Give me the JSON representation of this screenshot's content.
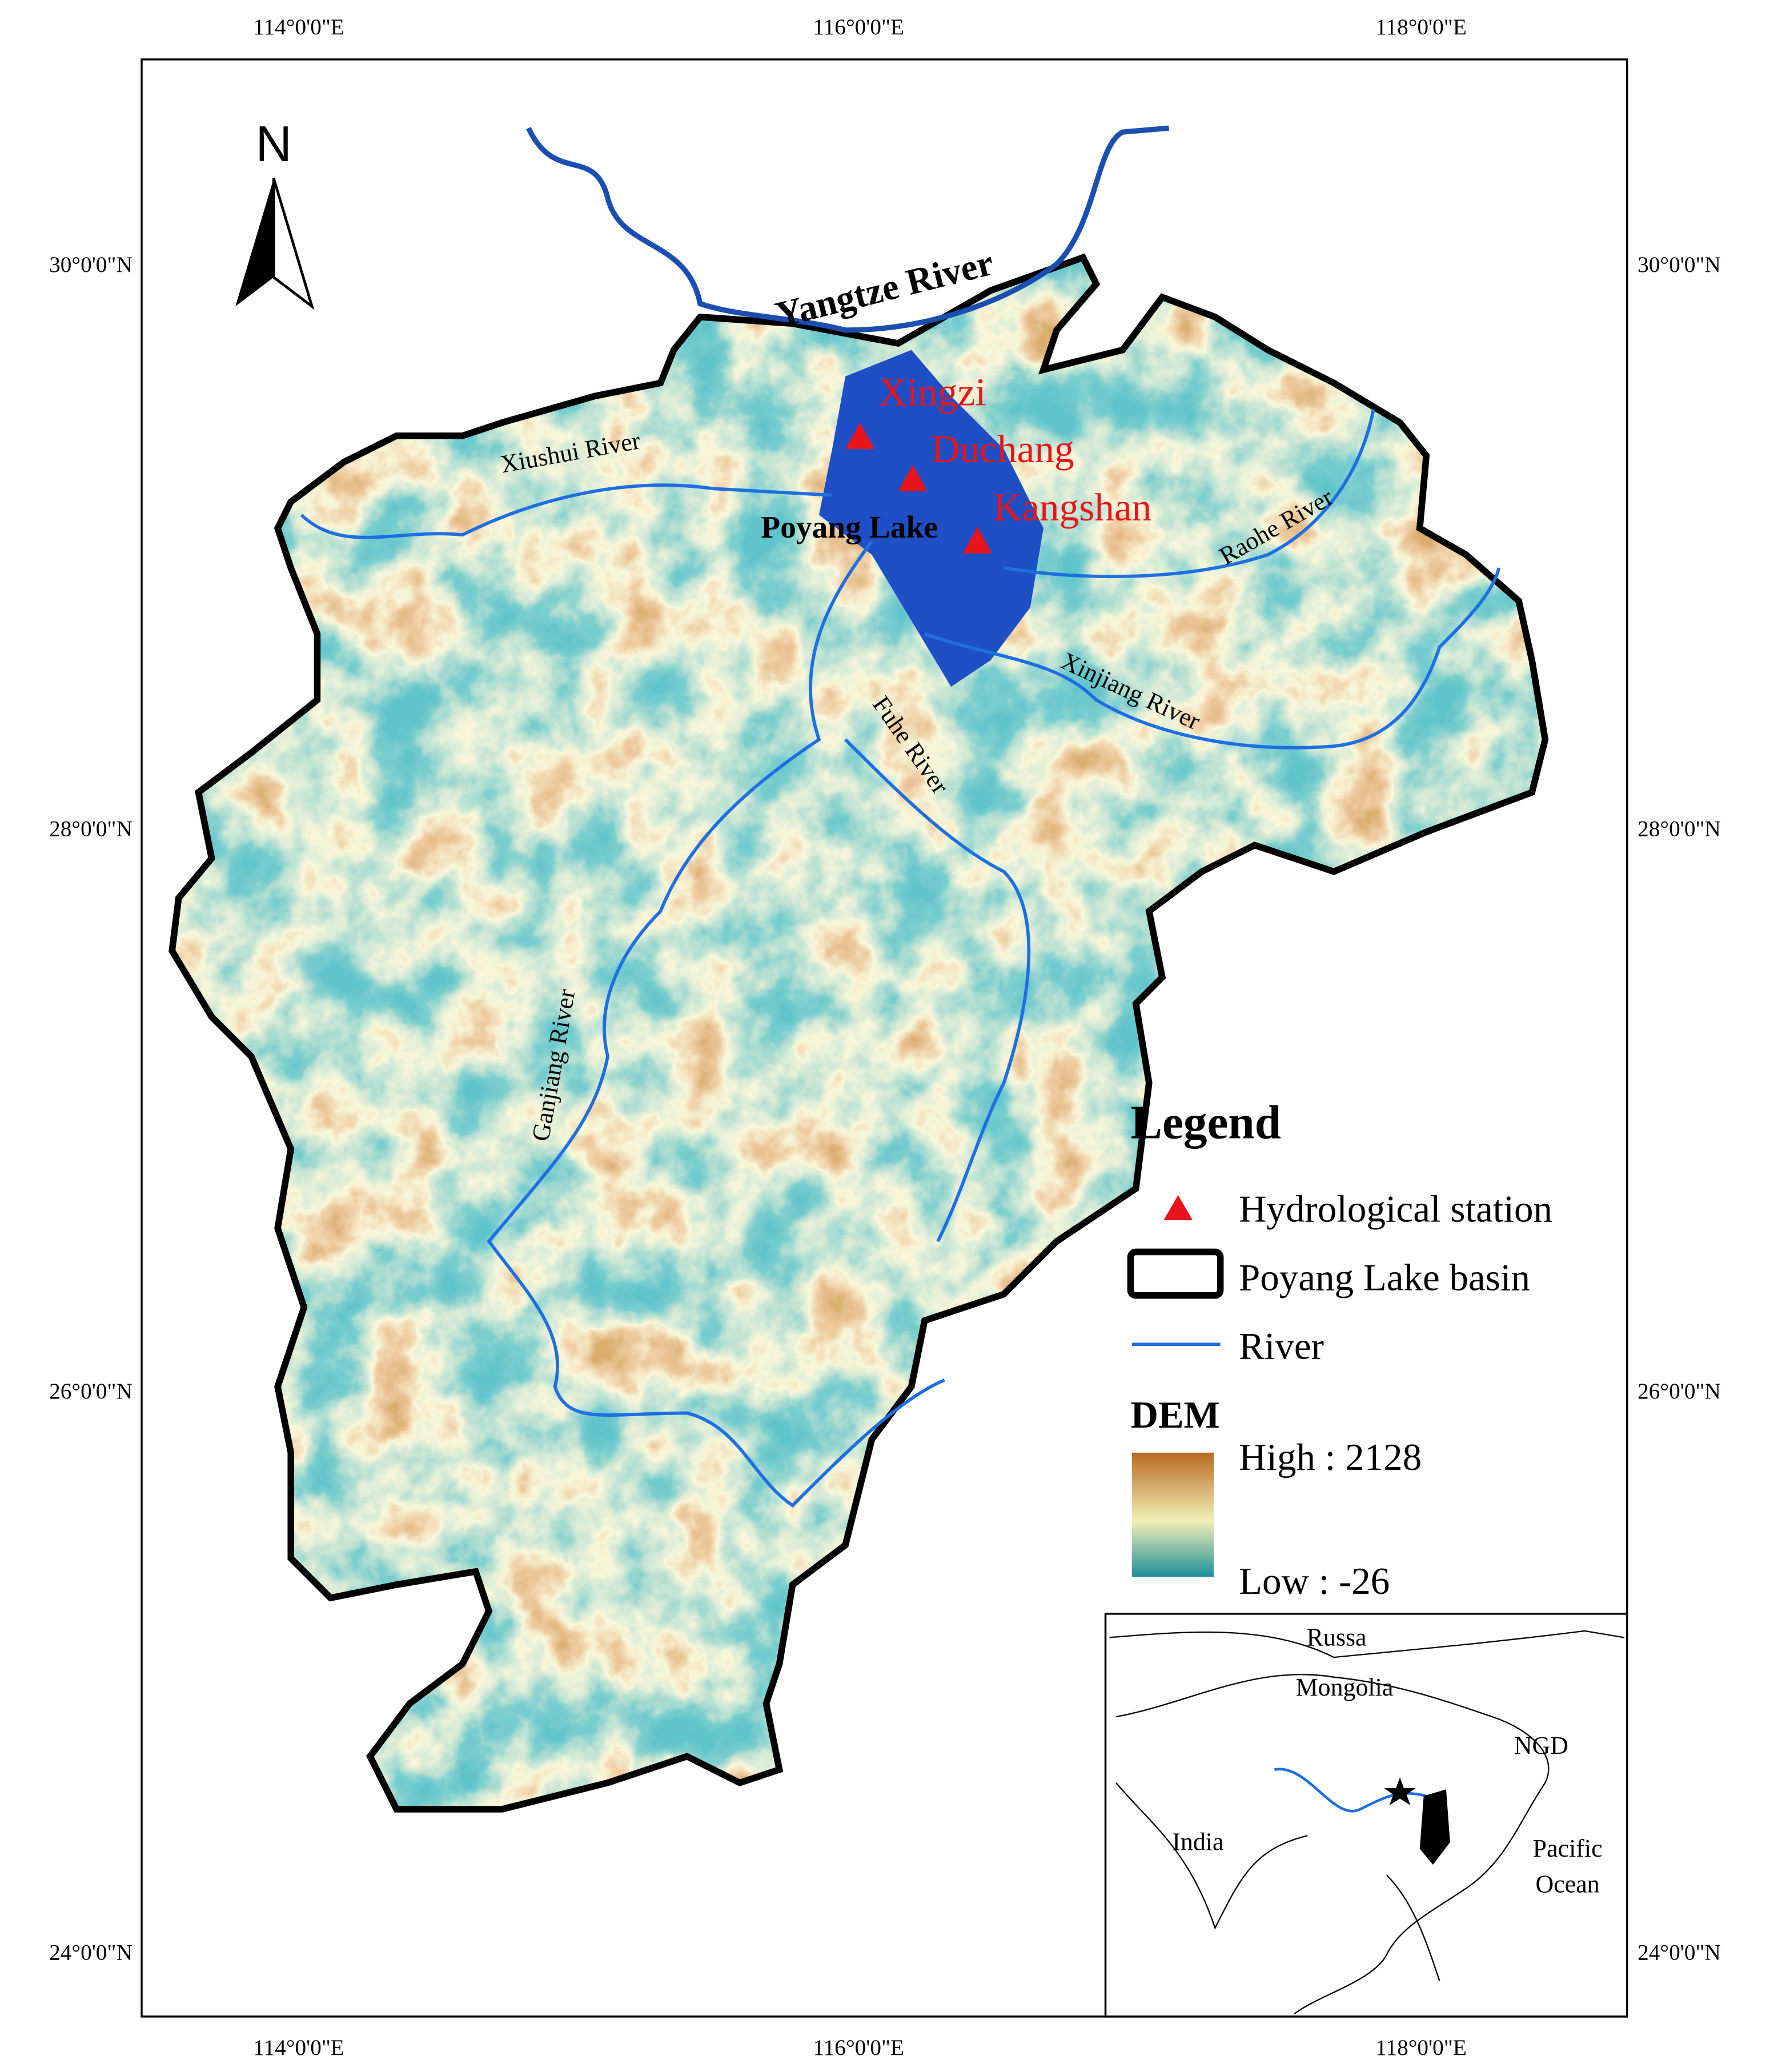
{
  "graticule": {
    "lon": [
      "114°0'0\"E",
      "116°0'0\"E",
      "118°0'0\"E"
    ],
    "lat": [
      "30°0'0\"N",
      "28°0'0\"N",
      "26°0'0\"N",
      "24°0'0\"N"
    ]
  },
  "north_arrow": "N",
  "rivers": [
    "Yangtze River",
    "Xiushui River",
    "Raohe River",
    "Xinjiang River",
    "Fuhe River",
    "Ganjiang River"
  ],
  "lake": "Poyang Lake",
  "stations": [
    "Xingzi",
    "Duchang",
    "Kangshan"
  ],
  "legend": {
    "title": "Legend",
    "items": [
      "Hydrological station",
      "Poyang Lake basin",
      "River"
    ],
    "dem_title": "DEM",
    "dem_high": "High : 2128",
    "dem_low": "Low : -26"
  },
  "inset": {
    "labels": [
      "Russa",
      "Mongolia",
      "NGD",
      "India",
      "Pacific",
      "Ocean"
    ]
  }
}
